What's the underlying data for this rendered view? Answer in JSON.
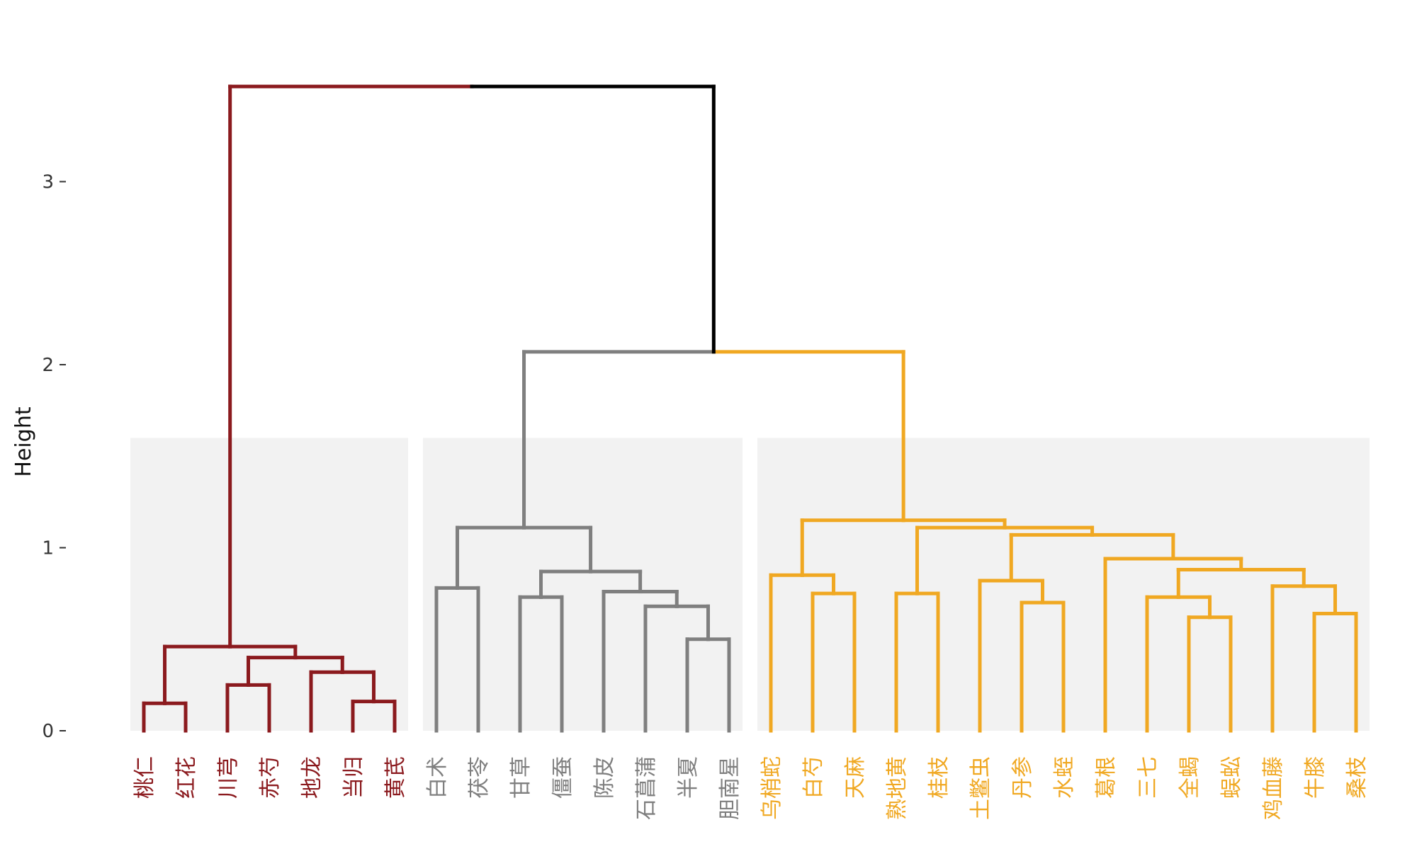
{
  "chart_data": {
    "type": "dendrogram",
    "ylabel": "Height",
    "ylim": [
      0,
      3.5
    ],
    "y_ticks": [
      0,
      1,
      2,
      3
    ],
    "y_tick_labels": [
      "0",
      "1",
      "2",
      "3"
    ],
    "colors": {
      "red": "#8b1a1e",
      "gray": "#7f7f7f",
      "orange": "#f0a822",
      "black": "#000000",
      "panel": "#f2f2f2",
      "tick": "#333333"
    },
    "panel_top": 1.6,
    "clusters": [
      {
        "name": "red",
        "color": "red",
        "first": 1,
        "last": 7
      },
      {
        "name": "gray",
        "color": "gray",
        "first": 8,
        "last": 15
      },
      {
        "name": "orange",
        "color": "orange",
        "first": 16,
        "last": 30
      }
    ],
    "leaves": [
      {
        "label": "桃仁",
        "color": "red"
      },
      {
        "label": "红花",
        "color": "red"
      },
      {
        "label": "川芎",
        "color": "red"
      },
      {
        "label": "赤芍",
        "color": "red"
      },
      {
        "label": "地龙",
        "color": "red"
      },
      {
        "label": "当归",
        "color": "red"
      },
      {
        "label": "黄芪",
        "color": "red"
      },
      {
        "label": "白术",
        "color": "gray"
      },
      {
        "label": "茯苓",
        "color": "gray"
      },
      {
        "label": "甘草",
        "color": "gray"
      },
      {
        "label": "僵蚕",
        "color": "gray"
      },
      {
        "label": "陈皮",
        "color": "gray"
      },
      {
        "label": "石菖蒲",
        "color": "gray"
      },
      {
        "label": "半夏",
        "color": "gray"
      },
      {
        "label": "胆南星",
        "color": "gray"
      },
      {
        "label": "乌梢蛇",
        "color": "orange"
      },
      {
        "label": "白芍",
        "color": "orange"
      },
      {
        "label": "天麻",
        "color": "orange"
      },
      {
        "label": "熟地黄",
        "color": "orange"
      },
      {
        "label": "桂枝",
        "color": "orange"
      },
      {
        "label": "土鳖虫",
        "color": "orange"
      },
      {
        "label": "丹参",
        "color": "orange"
      },
      {
        "label": "水蛭",
        "color": "orange"
      },
      {
        "label": "葛根",
        "color": "orange"
      },
      {
        "label": "三七",
        "color": "orange"
      },
      {
        "label": "全蝎",
        "color": "orange"
      },
      {
        "label": "蜈蚣",
        "color": "orange"
      },
      {
        "label": "鸡血藤",
        "color": "orange"
      },
      {
        "label": "牛膝",
        "color": "orange"
      },
      {
        "label": "桑枝",
        "color": "orange"
      }
    ],
    "merges": [
      {
        "id": "R1",
        "left": 1,
        "right": 2,
        "height": 0.15,
        "color": "red"
      },
      {
        "id": "R2",
        "left": 3,
        "right": 4,
        "height": 0.25,
        "color": "red"
      },
      {
        "id": "R3",
        "left": 6,
        "right": 7,
        "height": 0.16,
        "color": "red"
      },
      {
        "id": "R4",
        "left": 5,
        "right": "R3",
        "height": 0.32,
        "color": "red"
      },
      {
        "id": "R5",
        "left": "R2",
        "right": "R4",
        "height": 0.4,
        "color": "red"
      },
      {
        "id": "R6",
        "left": "R1",
        "right": "R5",
        "height": 0.46,
        "color": "red"
      },
      {
        "id": "G1",
        "left": 8,
        "right": 9,
        "height": 0.78,
        "color": "gray"
      },
      {
        "id": "G2",
        "left": 10,
        "right": 11,
        "height": 0.73,
        "color": "gray"
      },
      {
        "id": "G3",
        "left": 14,
        "right": 15,
        "height": 0.5,
        "color": "gray"
      },
      {
        "id": "G4",
        "left": 13,
        "right": "G3",
        "height": 0.68,
        "color": "gray"
      },
      {
        "id": "G5",
        "left": 12,
        "right": "G4",
        "height": 0.76,
        "color": "gray"
      },
      {
        "id": "G6",
        "left": "G2",
        "right": "G5",
        "height": 0.87,
        "color": "gray"
      },
      {
        "id": "G7",
        "left": "G1",
        "right": "G6",
        "height": 1.11,
        "color": "gray"
      },
      {
        "id": "O1",
        "left": 17,
        "right": 18,
        "height": 0.75,
        "color": "orange"
      },
      {
        "id": "O2",
        "left": 16,
        "right": "O1",
        "height": 0.85,
        "color": "orange"
      },
      {
        "id": "O3",
        "left": 19,
        "right": 20,
        "height": 0.75,
        "color": "orange"
      },
      {
        "id": "O4",
        "left": 22,
        "right": 23,
        "height": 0.7,
        "color": "orange"
      },
      {
        "id": "O5",
        "left": 21,
        "right": "O4",
        "height": 0.82,
        "color": "orange"
      },
      {
        "id": "O6",
        "left": 26,
        "right": 27,
        "height": 0.62,
        "color": "orange"
      },
      {
        "id": "O7",
        "left": 25,
        "right": "O6",
        "height": 0.73,
        "color": "orange"
      },
      {
        "id": "O8",
        "left": 29,
        "right": 30,
        "height": 0.64,
        "color": "orange"
      },
      {
        "id": "O9",
        "left": 28,
        "right": "O8",
        "height": 0.79,
        "color": "orange"
      },
      {
        "id": "O10",
        "left": "O7",
        "right": "O9",
        "height": 0.88,
        "color": "orange"
      },
      {
        "id": "O11",
        "left": 24,
        "right": "O10",
        "height": 0.94,
        "color": "orange"
      },
      {
        "id": "O12",
        "left": "O5",
        "right": "O11",
        "height": 1.07,
        "color": "orange"
      },
      {
        "id": "O13",
        "left": "O3",
        "right": "O12",
        "height": 1.11,
        "color": "orange"
      },
      {
        "id": "O14",
        "left": "O2",
        "right": "O13",
        "height": 1.15,
        "color": "orange"
      },
      {
        "id": "M1",
        "left": "G7",
        "right": "O14",
        "height": 2.07,
        "color": "gray",
        "right_color": "orange"
      },
      {
        "id": "M2",
        "left": "R6",
        "right": "M1",
        "height": 3.52,
        "color": "red",
        "right_color": "black"
      }
    ]
  }
}
